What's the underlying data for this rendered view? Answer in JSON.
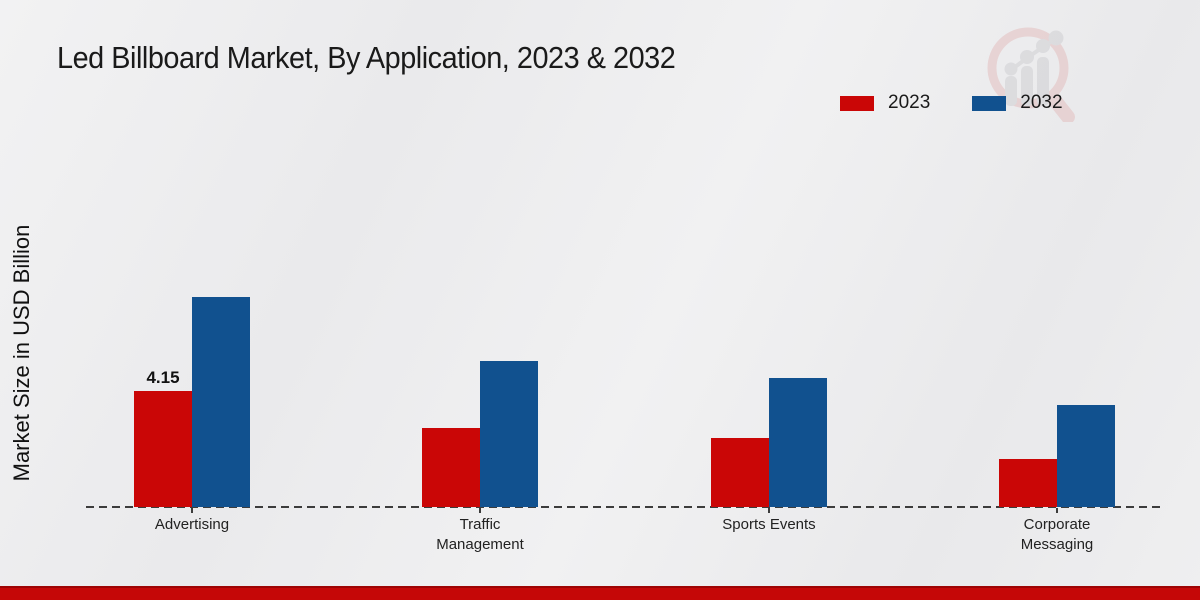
{
  "title": "Led Billboard Market, By Application, 2023 & 2032",
  "ylabel": "Market Size in USD Billion",
  "legend": {
    "position": "top-right",
    "items": [
      {
        "label": "2023",
        "color": "#ca0606"
      },
      {
        "label": "2032",
        "color": "#11518f"
      }
    ]
  },
  "colors": {
    "series_2023": "#ca0606",
    "series_2032": "#11518f",
    "footer_bar": "#c50707",
    "baseline": "#3c3c3c",
    "background": "#ededee"
  },
  "watermark": {
    "icon": "magnifier-bar-chart-logo-icon"
  },
  "chart_data": {
    "type": "bar",
    "title": "Led Billboard Market, By Application, 2023 & 2032",
    "xlabel": "",
    "ylabel": "Market Size in USD Billion",
    "categories": [
      "Advertising",
      "Traffic Management",
      "Sports Events",
      "Corporate Messaging"
    ],
    "series": [
      {
        "name": "2023",
        "color": "#ca0606",
        "values": [
          4.15,
          2.83,
          2.45,
          1.72
        ]
      },
      {
        "name": "2032",
        "color": "#11518f",
        "values": [
          7.49,
          5.21,
          4.59,
          3.64
        ]
      }
    ],
    "data_labels": [
      {
        "series": "2023",
        "category": "Advertising",
        "text": "4.15"
      }
    ],
    "ylim": [
      0,
      8
    ],
    "grid": false,
    "axis_style": "dashed-baseline-only",
    "legend_position": "top-right"
  }
}
